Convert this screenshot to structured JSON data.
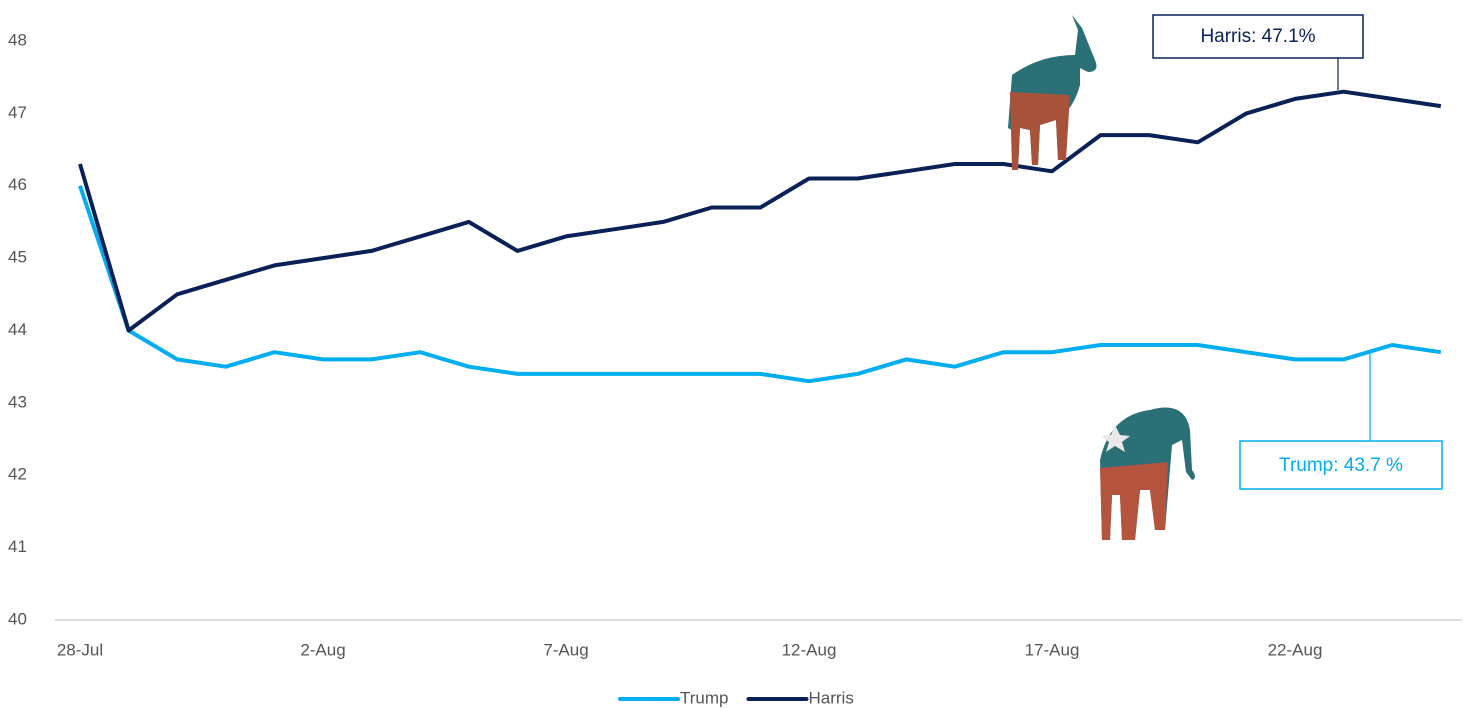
{
  "chart_data": {
    "type": "line",
    "categories": [
      "28-Jul",
      null,
      null,
      null,
      null,
      "2-Aug",
      null,
      null,
      null,
      null,
      "7-Aug",
      null,
      null,
      null,
      null,
      "12-Aug",
      null,
      null,
      null,
      null,
      "17-Aug",
      null,
      null,
      null,
      null,
      "22-Aug",
      null,
      null,
      null
    ],
    "series": [
      {
        "name": "Trump",
        "color": "#00aeef",
        "values": [
          46.0,
          44.0,
          43.6,
          43.5,
          43.7,
          43.6,
          43.6,
          43.7,
          43.5,
          43.4,
          43.4,
          43.4,
          43.4,
          43.4,
          43.4,
          43.3,
          43.4,
          43.6,
          43.5,
          43.7,
          43.7,
          43.8,
          43.8,
          43.8,
          43.7,
          43.6,
          43.6,
          43.8,
          43.7
        ]
      },
      {
        "name": "Harris",
        "color": "#0a2158",
        "values": [
          46.3,
          44.0,
          44.5,
          44.7,
          44.9,
          45.0,
          45.1,
          45.3,
          45.5,
          45.1,
          45.3,
          45.4,
          45.5,
          45.7,
          45.7,
          46.1,
          46.1,
          46.2,
          46.3,
          46.3,
          46.2,
          46.7,
          46.7,
          46.6,
          47.0,
          47.2,
          47.3,
          47.2,
          47.1
        ]
      }
    ],
    "annotations": [
      "Trump: 43.7 %",
      "Harris: 47.1%"
    ],
    "ylim": [
      40,
      48
    ],
    "yticks": [
      40,
      41,
      42,
      43,
      44,
      45,
      46,
      47,
      48
    ],
    "grid": false,
    "legend": "bottom"
  }
}
